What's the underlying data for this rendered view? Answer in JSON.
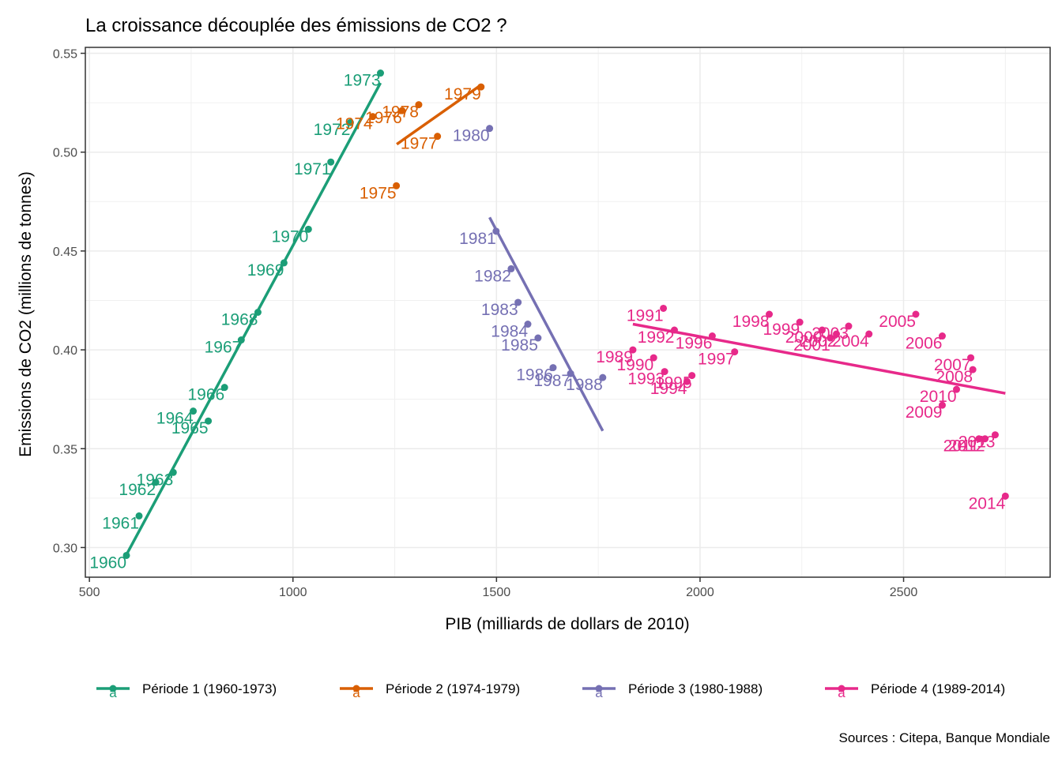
{
  "chart_data": {
    "type": "scatter",
    "title": "La croissance découplée des émissions de CO2 ?",
    "xlabel": "PIB (milliards de dollars de 2010)",
    "ylabel": "Emissions de CO2 (millions de tonnes)",
    "caption": "Sources : Citepa, Banque Mondiale",
    "xlim": [
      490,
      2860
    ],
    "ylim": [
      0.285,
      0.553
    ],
    "x_ticks": [
      500,
      1000,
      1500,
      2000,
      2500
    ],
    "x_tick_labels": [
      "500",
      "1000",
      "1500",
      "2000",
      "2500"
    ],
    "y_ticks": [
      0.3,
      0.35,
      0.4,
      0.45,
      0.5,
      0.55
    ],
    "y_tick_labels": [
      "0.30",
      "0.35",
      "0.40",
      "0.45",
      "0.50",
      "0.55"
    ],
    "grid": true,
    "legend_position": "bottom",
    "legend_glyph": "a",
    "series": [
      {
        "name": "Période 1 (1960-1973)",
        "color": "#1b9e77",
        "trend": {
          "x": [
            590,
            1215
          ],
          "y": [
            0.296,
            0.535
          ]
        },
        "points": [
          {
            "year": "1960",
            "x": 591,
            "y": 0.296
          },
          {
            "year": "1961",
            "x": 622,
            "y": 0.316
          },
          {
            "year": "1962",
            "x": 663,
            "y": 0.333
          },
          {
            "year": "1963",
            "x": 706,
            "y": 0.338
          },
          {
            "year": "1964",
            "x": 755,
            "y": 0.369
          },
          {
            "year": "1965",
            "x": 792,
            "y": 0.364
          },
          {
            "year": "1966",
            "x": 832,
            "y": 0.381
          },
          {
            "year": "1967",
            "x": 873,
            "y": 0.405
          },
          {
            "year": "1968",
            "x": 914,
            "y": 0.419
          },
          {
            "year": "1969",
            "x": 978,
            "y": 0.444
          },
          {
            "year": "1970",
            "x": 1038,
            "y": 0.461
          },
          {
            "year": "1971",
            "x": 1093,
            "y": 0.495
          },
          {
            "year": "1972",
            "x": 1141,
            "y": 0.515
          },
          {
            "year": "1973",
            "x": 1215,
            "y": 0.54
          }
        ]
      },
      {
        "name": "Période 2 (1974-1979)",
        "color": "#d95f02",
        "trend": {
          "x": [
            1255,
            1462
          ],
          "y": [
            0.504,
            0.534
          ]
        },
        "points": [
          {
            "year": "1974",
            "x": 1196,
            "y": 0.518
          },
          {
            "year": "1975",
            "x": 1254,
            "y": 0.483
          },
          {
            "year": "1976",
            "x": 1268,
            "y": 0.521
          },
          {
            "year": "1977",
            "x": 1355,
            "y": 0.508
          },
          {
            "year": "1978",
            "x": 1309,
            "y": 0.524
          },
          {
            "year": "1979",
            "x": 1462,
            "y": 0.533
          }
        ]
      },
      {
        "name": "Période 3 (1980-1988)",
        "color": "#7570b3",
        "trend": {
          "x": [
            1483,
            1761
          ],
          "y": [
            0.467,
            0.359
          ]
        },
        "points": [
          {
            "year": "1980",
            "x": 1483,
            "y": 0.512
          },
          {
            "year": "1981",
            "x": 1499,
            "y": 0.46
          },
          {
            "year": "1982",
            "x": 1536,
            "y": 0.441
          },
          {
            "year": "1983",
            "x": 1553,
            "y": 0.424
          },
          {
            "year": "1984",
            "x": 1577,
            "y": 0.413
          },
          {
            "year": "1985",
            "x": 1602,
            "y": 0.406
          },
          {
            "year": "1986",
            "x": 1639,
            "y": 0.391
          },
          {
            "year": "1987",
            "x": 1682,
            "y": 0.388
          },
          {
            "year": "1988",
            "x": 1761,
            "y": 0.386
          }
        ]
      },
      {
        "name": "Période 4 (1989-2014)",
        "color": "#e7298a",
        "trend": {
          "x": [
            1835,
            2750
          ],
          "y": [
            0.413,
            0.378
          ]
        },
        "points": [
          {
            "year": "1989",
            "x": 1835,
            "y": 0.4
          },
          {
            "year": "1990",
            "x": 1886,
            "y": 0.396
          },
          {
            "year": "1991",
            "x": 1910,
            "y": 0.421
          },
          {
            "year": "1992",
            "x": 1937,
            "y": 0.41
          },
          {
            "year": "1993",
            "x": 1913,
            "y": 0.389
          },
          {
            "year": "1994",
            "x": 1968,
            "y": 0.384
          },
          {
            "year": "1995",
            "x": 1980,
            "y": 0.387
          },
          {
            "year": "1996",
            "x": 2030,
            "y": 0.407
          },
          {
            "year": "1997",
            "x": 2085,
            "y": 0.399
          },
          {
            "year": "1998",
            "x": 2170,
            "y": 0.418
          },
          {
            "year": "1999",
            "x": 2245,
            "y": 0.414
          },
          {
            "year": "2000",
            "x": 2300,
            "y": 0.41
          },
          {
            "year": "2001",
            "x": 2320,
            "y": 0.406
          },
          {
            "year": "2002",
            "x": 2335,
            "y": 0.408
          },
          {
            "year": "2003",
            "x": 2365,
            "y": 0.412
          },
          {
            "year": "2004",
            "x": 2415,
            "y": 0.408
          },
          {
            "year": "2005",
            "x": 2530,
            "y": 0.418
          },
          {
            "year": "2006",
            "x": 2595,
            "y": 0.407
          },
          {
            "year": "2007",
            "x": 2665,
            "y": 0.396
          },
          {
            "year": "2008",
            "x": 2670,
            "y": 0.39
          },
          {
            "year": "2009",
            "x": 2595,
            "y": 0.372
          },
          {
            "year": "2010",
            "x": 2630,
            "y": 0.38
          },
          {
            "year": "2011",
            "x": 2685,
            "y": 0.355
          },
          {
            "year": "2012",
            "x": 2700,
            "y": 0.355
          },
          {
            "year": "2013",
            "x": 2725,
            "y": 0.357
          },
          {
            "year": "2014",
            "x": 2750,
            "y": 0.326
          }
        ]
      }
    ]
  }
}
